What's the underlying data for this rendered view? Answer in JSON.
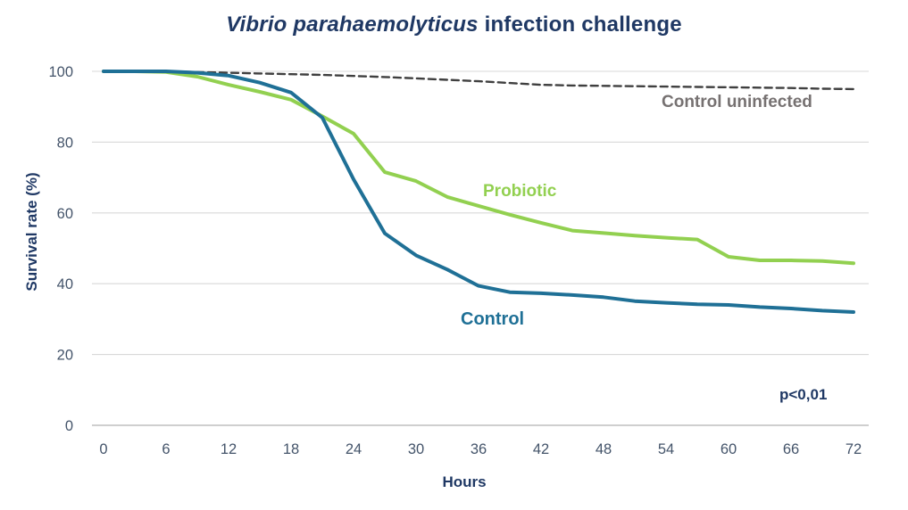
{
  "title": {
    "italic": "Vibrio parahaemolyticus",
    "rest": " infection challenge"
  },
  "annotations": {
    "p_value": "p<0,01"
  },
  "colors": {
    "title_navy": "#1F3864",
    "tick_slate": "#44546A",
    "uninfected_gray": "#767171",
    "probiotic_green": "#92D050",
    "control_blue": "#1F7096",
    "dashed_line": "#3F3F3F",
    "gridline": "#D9D9D9",
    "axis_line": "#BFBFBF"
  },
  "chart_data": {
    "type": "line",
    "title": "Vibrio parahaemolyticus infection challenge",
    "xlabel": "Hours",
    "ylabel": "Survival rate (%)",
    "xlim": [
      0,
      72
    ],
    "ylim": [
      0,
      100
    ],
    "x_ticks": [
      0,
      6,
      12,
      18,
      24,
      30,
      36,
      42,
      48,
      54,
      60,
      66,
      72
    ],
    "y_ticks": [
      0,
      20,
      40,
      60,
      80,
      100
    ],
    "grid": "horizontal",
    "legend_position": "inline-labels",
    "annotation": "p<0,01",
    "x": [
      0,
      3,
      6,
      9,
      12,
      15,
      18,
      21,
      24,
      27,
      30,
      33,
      36,
      39,
      42,
      45,
      48,
      51,
      54,
      57,
      60,
      63,
      66,
      69,
      72
    ],
    "series": [
      {
        "id": "uninfected",
        "name": "Control uninfected",
        "color": "#3F3F3F",
        "style": "dashed",
        "label_color": "#767171",
        "values": [
          100,
          100,
          100,
          99.8,
          99.6,
          99.4,
          99.2,
          99,
          98.7,
          98.4,
          98,
          97.6,
          97.2,
          96.7,
          96.2,
          96,
          95.9,
          95.8,
          95.7,
          95.6,
          95.5,
          95.4,
          95.3,
          95.1,
          95
        ]
      },
      {
        "id": "probiotic",
        "name": "Probiotic",
        "color": "#92D050",
        "style": "solid",
        "label_color": "#92D050",
        "values": [
          100,
          100,
          99.8,
          98.5,
          96.2,
          94.2,
          92,
          87.3,
          82.4,
          71.5,
          69,
          64.5,
          62,
          59.5,
          57.2,
          55,
          54.3,
          53.6,
          53,
          52.5,
          47.6,
          46.6,
          46.6,
          46.4,
          45.8
        ]
      },
      {
        "id": "control",
        "name": "Control",
        "color": "#1F7096",
        "style": "solid",
        "label_color": "#1F7096",
        "values": [
          100,
          100,
          100,
          99.6,
          98.8,
          96.8,
          94,
          86.9,
          69.5,
          54.2,
          48,
          44,
          39.4,
          37.6,
          37.3,
          36.8,
          36.2,
          35.1,
          34.6,
          34.2,
          34,
          33.4,
          33,
          32.4,
          32
        ]
      }
    ]
  }
}
